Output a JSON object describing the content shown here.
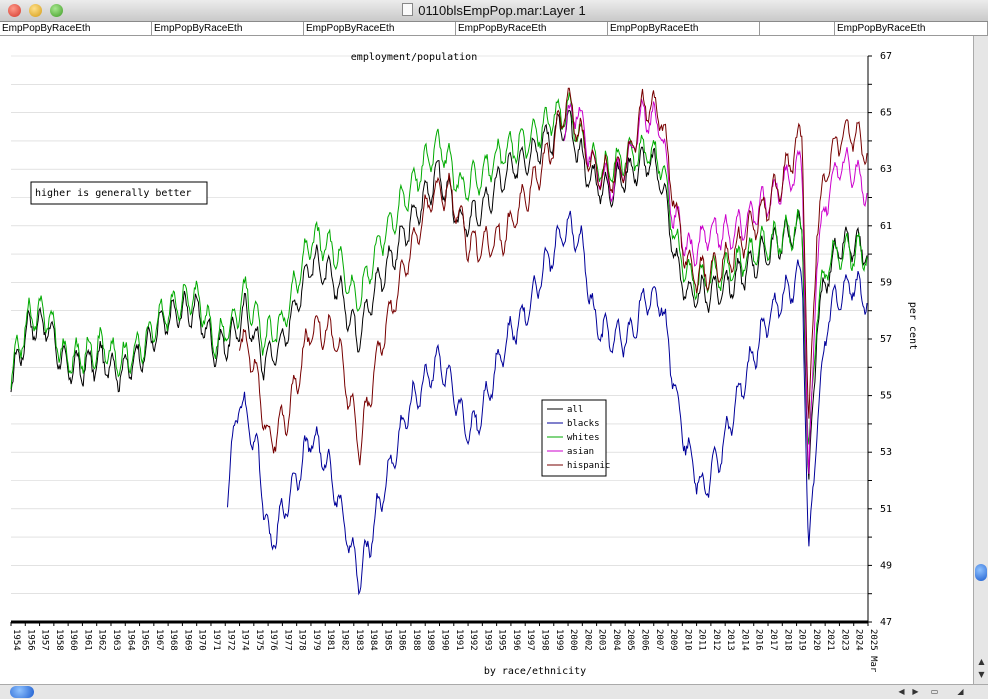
{
  "window": {
    "title": "0110blsEmpPop.mar:Layer 1"
  },
  "tabs": [
    "EmpPopByRaceEth",
    "EmpPopByRaceEth",
    "EmpPopByRaceEth",
    "EmpPopByRaceEth",
    "EmpPopByRaceEth",
    "",
    "EmpPopByRaceEth"
  ],
  "chart_data": {
    "type": "line",
    "title": "employment/population",
    "xlabel": "by race/ethnicity",
    "ylabel": "per cent",
    "note": "higher is generally better",
    "ylim": [
      47,
      67
    ],
    "xlim": [
      1954,
      2025.25
    ],
    "y_ticks": [
      "47",
      "49",
      "51",
      "53",
      "55",
      "57",
      "59",
      "61",
      "63",
      "65",
      "67"
    ],
    "x_ticks": [
      "1954",
      "1956",
      "1957",
      "1958",
      "1960",
      "1961",
      "1962",
      "1963",
      "1964",
      "1965",
      "1967",
      "1968",
      "1969",
      "1970",
      "1971",
      "1972",
      "1974",
      "1975",
      "1976",
      "1977",
      "1978",
      "1979",
      "1981",
      "1982",
      "1983",
      "1984",
      "1985",
      "1986",
      "1988",
      "1989",
      "1990",
      "1991",
      "1992",
      "1993",
      "1995",
      "1996",
      "1997",
      "1998",
      "1999",
      "2000",
      "2002",
      "2003",
      "2004",
      "2005",
      "2006",
      "2007",
      "2009",
      "2010",
      "2011",
      "2012",
      "2013",
      "2014",
      "2016",
      "2017",
      "2018",
      "2019",
      "2020",
      "2021",
      "2023",
      "2024",
      "2025 Mar"
    ],
    "legend_position": "center",
    "series": [
      {
        "name": "all",
        "color": "#000000",
        "x": [
          1954,
          1955.5,
          1957,
          1958.5,
          1960,
          1961.5,
          1963,
          1965,
          1966.5,
          1968,
          1969.5,
          1971,
          1972.5,
          1973.5,
          1975,
          1976.5,
          1979,
          1981,
          1982.8,
          1984.5,
          1987,
          1989.5,
          1991.5,
          1993,
          1995,
          1997,
          1999,
          2000.3,
          2002,
          2003.5,
          2005,
          2007,
          2008,
          2009.5,
          2010.5,
          2012,
          2014,
          2016,
          2018,
          2019.8,
          2020.3,
          2021,
          2022,
          2023,
          2024,
          2025.2
        ],
        "y": [
          55.5,
          57.5,
          57.5,
          56,
          56,
          56.3,
          55.8,
          56.5,
          57.5,
          58,
          58,
          56.6,
          57.1,
          58,
          56.2,
          56.8,
          59.8,
          59,
          57.1,
          59,
          60.9,
          62.9,
          61,
          61.5,
          62.8,
          63.5,
          64.2,
          64.6,
          62.8,
          62.2,
          62.8,
          63.3,
          62.8,
          59.3,
          58.5,
          58.6,
          59,
          59.8,
          60.5,
          61,
          51.3,
          57.5,
          59.5,
          60.3,
          60.3,
          60.1
        ]
      },
      {
        "name": "blacks",
        "color": "#000099",
        "x": [
          1972,
          1973,
          1974.5,
          1975.5,
          1977,
          1979,
          1980.5,
          1982,
          1983,
          1984.5,
          1987,
          1989.5,
          1990.5,
          1992,
          1993,
          1995,
          1997,
          1998.5,
          2000.3,
          2001.5,
          2002.5,
          2004,
          2005.5,
          2006.5,
          2008,
          2009.5,
          2010.3,
          2011.5,
          2013,
          2015,
          2017,
          2019.8,
          2020.3,
          2021,
          2022,
          2023,
          2024,
          2025.2
        ],
        "y": [
          51.7,
          55,
          53,
          49.6,
          51.3,
          53.6,
          52.4,
          50,
          48.5,
          51,
          54.5,
          56.3,
          55.4,
          53.7,
          54.3,
          56.8,
          58.1,
          59.7,
          61,
          60.3,
          57.6,
          57,
          57.1,
          58.3,
          58.5,
          54.5,
          53,
          51.6,
          53,
          55.6,
          57.8,
          59.4,
          49,
          54,
          58,
          58.6,
          59,
          58.4
        ]
      },
      {
        "name": "whites",
        "color": "#00aa00",
        "x": [
          1954,
          1955.5,
          1957,
          1958.5,
          1960,
          1961.5,
          1963,
          1965,
          1966.5,
          1968,
          1969.5,
          1971,
          1972.5,
          1973.5,
          1975,
          1976.5,
          1979,
          1981,
          1982.8,
          1984.5,
          1987,
          1989.5,
          1991.5,
          1993,
          1995,
          1997,
          1999,
          2000.3,
          2002,
          2003.5,
          2005,
          2007,
          2008,
          2009.5,
          2010.5,
          2012,
          2014,
          2016,
          2018,
          2019.8,
          2020.3,
          2021,
          2022,
          2023,
          2024,
          2025.2
        ],
        "y": [
          55.8,
          57.8,
          57.9,
          56.3,
          56.4,
          56.8,
          56.2,
          56.8,
          57.8,
          58.3,
          58.5,
          56.9,
          57.6,
          58.7,
          57,
          57.5,
          60.6,
          60.1,
          58.3,
          60.3,
          62.2,
          64,
          62.3,
          62.8,
          63.6,
          64,
          64.8,
          65.1,
          63.5,
          62.9,
          63.4,
          63.7,
          63.3,
          60,
          59.1,
          59.2,
          59.5,
          60.2,
          60.6,
          61,
          52.5,
          58,
          59.8,
          60.1,
          60.1,
          60
        ]
      },
      {
        "name": "asian",
        "color": "#cc00cc",
        "x": [
          2000,
          2001,
          2002.5,
          2004,
          2005.5,
          2006.5,
          2008,
          2009,
          2010.5,
          2012,
          2014,
          2016,
          2018,
          2019.8,
          2020.3,
          2021,
          2022,
          2023,
          2024,
          2025.2
        ],
        "y": [
          64.5,
          65.2,
          63,
          62.4,
          63.5,
          65,
          64.6,
          61.5,
          60,
          60.8,
          60.7,
          61.5,
          62.4,
          63.2,
          51.5,
          60,
          62.3,
          63.2,
          63,
          62.2
        ]
      },
      {
        "name": "hispanic",
        "color": "#770000",
        "x": [
          1973,
          1974,
          1975.5,
          1977,
          1979,
          1981,
          1983,
          1984.5,
          1987,
          1989,
          1990.5,
          1992,
          1993,
          1995,
          1997,
          1999,
          2000.3,
          2001.5,
          2002.5,
          2004,
          2005.5,
          2006.5,
          2008,
          2009.5,
          2010.5,
          2012,
          2014,
          2016,
          2018,
          2019.8,
          2020.3,
          2021,
          2022,
          2023,
          2024,
          2025.2
        ],
        "y": [
          57,
          56.5,
          53.3,
          54.3,
          57.5,
          57.1,
          53.2,
          56.5,
          59.9,
          62.1,
          62.2,
          60.4,
          60.3,
          60.6,
          62.2,
          63.8,
          65.5,
          64,
          63,
          62.7,
          63.5,
          65.3,
          65,
          61,
          59.3,
          59.3,
          60,
          61.2,
          62.5,
          64.3,
          53.5,
          61,
          63.3,
          64.2,
          64.3,
          63.6
        ]
      }
    ]
  }
}
